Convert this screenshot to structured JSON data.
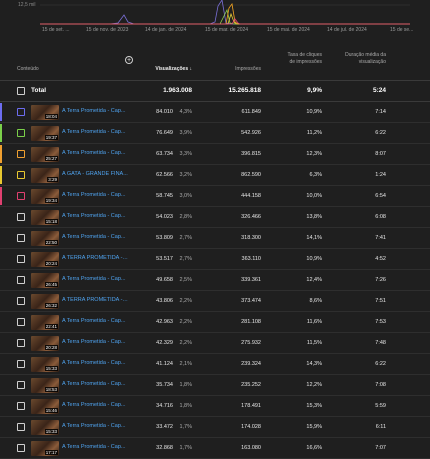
{
  "chart": {
    "y_tick_label": "12,5 mil",
    "x_labels": [
      "15 de set. ...",
      "15 de nov. de 2023",
      "14 de jan. de 2024",
      "15 de mar. de 2024",
      "15 de mai. de 2024",
      "14 de jul. de 2024",
      "15 de se..."
    ],
    "colors": [
      "#7a6fd6",
      "#8fd14f",
      "#f5a623",
      "#e8d13a",
      "#e03e7b"
    ]
  },
  "table": {
    "headers": {
      "content": "Conteúdo",
      "views": "Visualizações  ↓",
      "impressions": "Impressões",
      "ctr": "Taxa de cliques de impressões",
      "avg_duration": "Duração média da visualização"
    },
    "total": {
      "label": "Total",
      "views": "1.963.008",
      "impressions": "15.265.818",
      "ctr": "9,9%",
      "avg_duration": "5:24"
    },
    "rows": [
      {
        "color": "#6d6df0",
        "duration": "18:04",
        "title": "A Terra Prometida - Cap...",
        "views": "84.010",
        "pct": "4,3%",
        "impressions": "611.849",
        "ctr": "10,9%",
        "avg": "7:14"
      },
      {
        "color": "#7bd04a",
        "duration": "19:37",
        "title": "A Terra Prometida - Cap...",
        "views": "76.649",
        "pct": "3,9%",
        "impressions": "542.926",
        "ctr": "11,2%",
        "avg": "6:22"
      },
      {
        "color": "#f0a030",
        "duration": "25:27",
        "title": "A Terra Prometida - Cap...",
        "views": "63.734",
        "pct": "3,3%",
        "impressions": "396.815",
        "ctr": "12,3%",
        "avg": "8:07"
      },
      {
        "color": "#e8c830",
        "duration": "3:29",
        "title": "A GATA - GRANDE FINA...",
        "views": "62.566",
        "pct": "3,2%",
        "impressions": "862.590",
        "ctr": "6,3%",
        "avg": "1:24"
      },
      {
        "color": "#e04070",
        "duration": "19:34",
        "title": "A Terra Prometida - Cap...",
        "views": "58.745",
        "pct": "3,0%",
        "impressions": "444.158",
        "ctr": "10,0%",
        "avg": "6:54"
      },
      {
        "color": "",
        "duration": "15:18",
        "title": "A Terra Prometida - Cap...",
        "views": "54.023",
        "pct": "2,8%",
        "impressions": "326.466",
        "ctr": "13,8%",
        "avg": "6:08"
      },
      {
        "color": "",
        "duration": "22:50",
        "title": "A Terra Prometida - Cap...",
        "views": "53.809",
        "pct": "2,7%",
        "impressions": "318.300",
        "ctr": "14,1%",
        "avg": "7:41"
      },
      {
        "color": "",
        "duration": "20:24",
        "title": "A TERRA PROMETIDA - ...",
        "views": "53.517",
        "pct": "2,7%",
        "impressions": "363.110",
        "ctr": "10,9%",
        "avg": "4:52"
      },
      {
        "color": "",
        "duration": "26:45",
        "title": "A Terra Prometida - Cap...",
        "views": "49.658",
        "pct": "2,5%",
        "impressions": "339.361",
        "ctr": "12,4%",
        "avg": "7:26"
      },
      {
        "color": "",
        "duration": "26:32",
        "title": "A TERRA PROMETIDA - ...",
        "views": "43.806",
        "pct": "2,2%",
        "impressions": "373.474",
        "ctr": "8,6%",
        "avg": "7:51"
      },
      {
        "color": "",
        "duration": "22:41",
        "title": "A Terra Prometida - Cap...",
        "views": "42.963",
        "pct": "2,2%",
        "impressions": "281.108",
        "ctr": "11,6%",
        "avg": "7:53"
      },
      {
        "color": "",
        "duration": "20:28",
        "title": "A Terra Prometida - Cap...",
        "views": "42.329",
        "pct": "2,2%",
        "impressions": "275.932",
        "ctr": "11,5%",
        "avg": "7:48"
      },
      {
        "color": "",
        "duration": "15:33",
        "title": "A Terra Prometida - Cap...",
        "views": "41.124",
        "pct": "2,1%",
        "impressions": "239.324",
        "ctr": "14,3%",
        "avg": "6:22"
      },
      {
        "color": "",
        "duration": "18:53",
        "title": "A Terra Prometida - Cap...",
        "views": "35.734",
        "pct": "1,8%",
        "impressions": "235.252",
        "ctr": "12,2%",
        "avg": "7:08"
      },
      {
        "color": "",
        "duration": "15:46",
        "title": "A Terra Prometida - Cap...",
        "views": "34.716",
        "pct": "1,8%",
        "impressions": "178.491",
        "ctr": "15,3%",
        "avg": "5:59"
      },
      {
        "color": "",
        "duration": "15:33",
        "title": "A Terra Prometida - Cap...",
        "views": "33.472",
        "pct": "1,7%",
        "impressions": "174.028",
        "ctr": "15,9%",
        "avg": "6:11"
      },
      {
        "color": "",
        "duration": "17:17",
        "title": "A Terra Prometida - Cap...",
        "views": "32.868",
        "pct": "1,7%",
        "impressions": "163.080",
        "ctr": "16,6%",
        "avg": "7:07"
      }
    ]
  }
}
